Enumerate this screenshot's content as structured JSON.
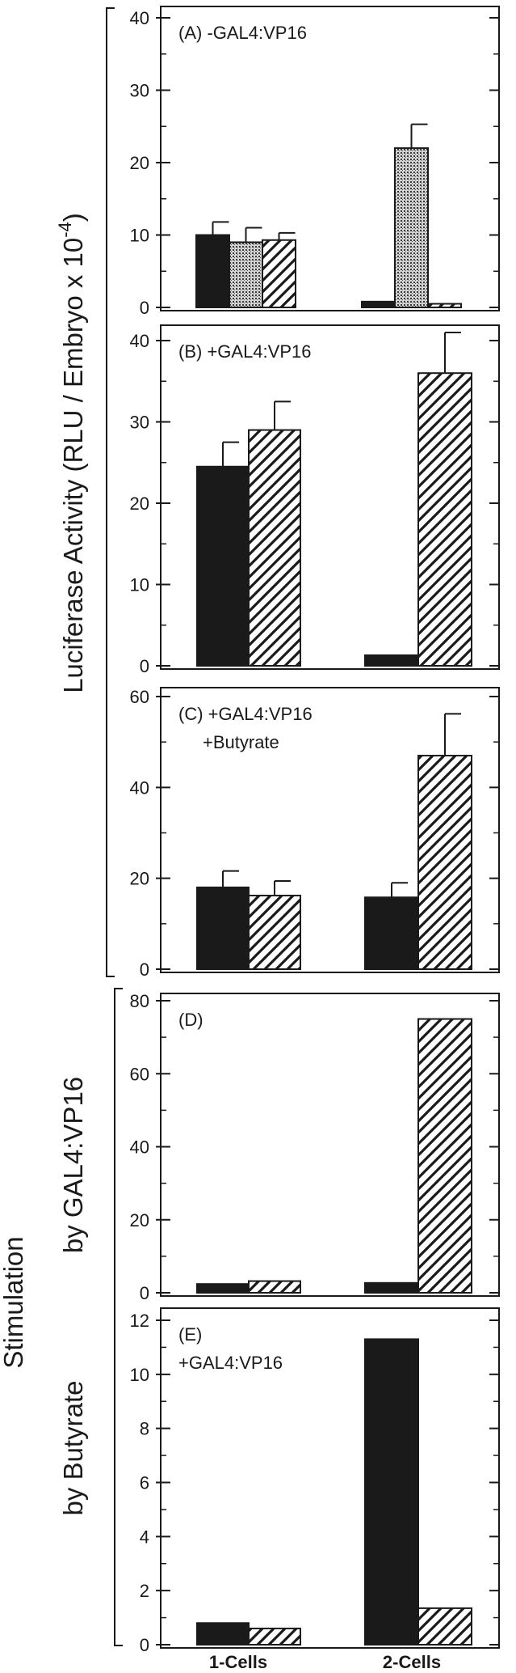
{
  "chart_data": [
    {
      "type": "bar",
      "panel": "A",
      "annotation": [
        "(A) -GAL4:VP16"
      ],
      "categories": [
        "1-Cells",
        "2-Cells"
      ],
      "series": [
        {
          "pattern": "solid",
          "values": [
            10,
            0.8
          ],
          "errors": [
            1.8,
            null
          ]
        },
        {
          "pattern": "dotted",
          "values": [
            9,
            22
          ],
          "errors": [
            2.0,
            3.3
          ]
        },
        {
          "pattern": "hatched",
          "values": [
            9.3,
            0.5
          ],
          "errors": [
            1.0,
            null
          ]
        }
      ],
      "ylim": [
        0,
        40
      ],
      "yticks": [
        0,
        10,
        20,
        30,
        40
      ]
    },
    {
      "type": "bar",
      "panel": "B",
      "annotation": [
        "(B) +GAL4:VP16"
      ],
      "categories": [
        "1-Cells",
        "2-Cells"
      ],
      "series": [
        {
          "pattern": "solid",
          "values": [
            24.5,
            1.3
          ],
          "errors": [
            3.0,
            null
          ]
        },
        {
          "pattern": "hatched",
          "values": [
            29,
            36
          ],
          "errors": [
            3.5,
            5.0
          ]
        }
      ],
      "ylim": [
        0,
        40
      ],
      "yticks": [
        0,
        10,
        20,
        30,
        40
      ]
    },
    {
      "type": "bar",
      "panel": "C",
      "annotation": [
        "(C) +GAL4:VP16",
        "+Butyrate"
      ],
      "categories": [
        "1-Cells",
        "2-Cells"
      ],
      "series": [
        {
          "pattern": "solid",
          "values": [
            18,
            15.8
          ],
          "errors": [
            3.6,
            3.2
          ]
        },
        {
          "pattern": "hatched",
          "values": [
            16.2,
            47
          ],
          "errors": [
            3.2,
            9.2
          ]
        }
      ],
      "ylim": [
        0,
        60
      ],
      "yticks": [
        0,
        20,
        40,
        60
      ]
    },
    {
      "type": "bar",
      "panel": "D",
      "annotation": [
        "(D)"
      ],
      "categories": [
        "1-Cells",
        "2-Cells"
      ],
      "series": [
        {
          "pattern": "solid",
          "values": [
            2.4,
            2.7
          ],
          "errors": [
            null,
            null
          ]
        },
        {
          "pattern": "hatched",
          "values": [
            3.2,
            75
          ],
          "errors": [
            null,
            null
          ]
        }
      ],
      "ylim": [
        0,
        80
      ],
      "yticks": [
        0,
        20,
        40,
        60,
        80
      ]
    },
    {
      "type": "bar",
      "panel": "E",
      "annotation": [
        "(E)",
        "+GAL4:VP16"
      ],
      "categories": [
        "1-Cells",
        "2-Cells"
      ],
      "series": [
        {
          "pattern": "solid",
          "values": [
            0.8,
            11.3
          ],
          "errors": [
            null,
            null
          ]
        },
        {
          "pattern": "hatched",
          "values": [
            0.6,
            1.35
          ],
          "errors": [
            null,
            null
          ]
        }
      ],
      "ylim": [
        0,
        12
      ],
      "yticks": [
        0,
        2,
        4,
        6,
        8,
        10,
        12
      ]
    }
  ],
  "ylabels": {
    "luciferase": "Luciferase Activity  (RLU / Embryo x 10",
    "luciferase_exp": "-4",
    "luciferase_close": ")",
    "stimulation": "Stimulation",
    "by_gal4": "by  GAL4:VP16",
    "by_butyrate": "by Butyrate"
  },
  "x_categories": [
    "1-Cells",
    "2-Cells"
  ]
}
